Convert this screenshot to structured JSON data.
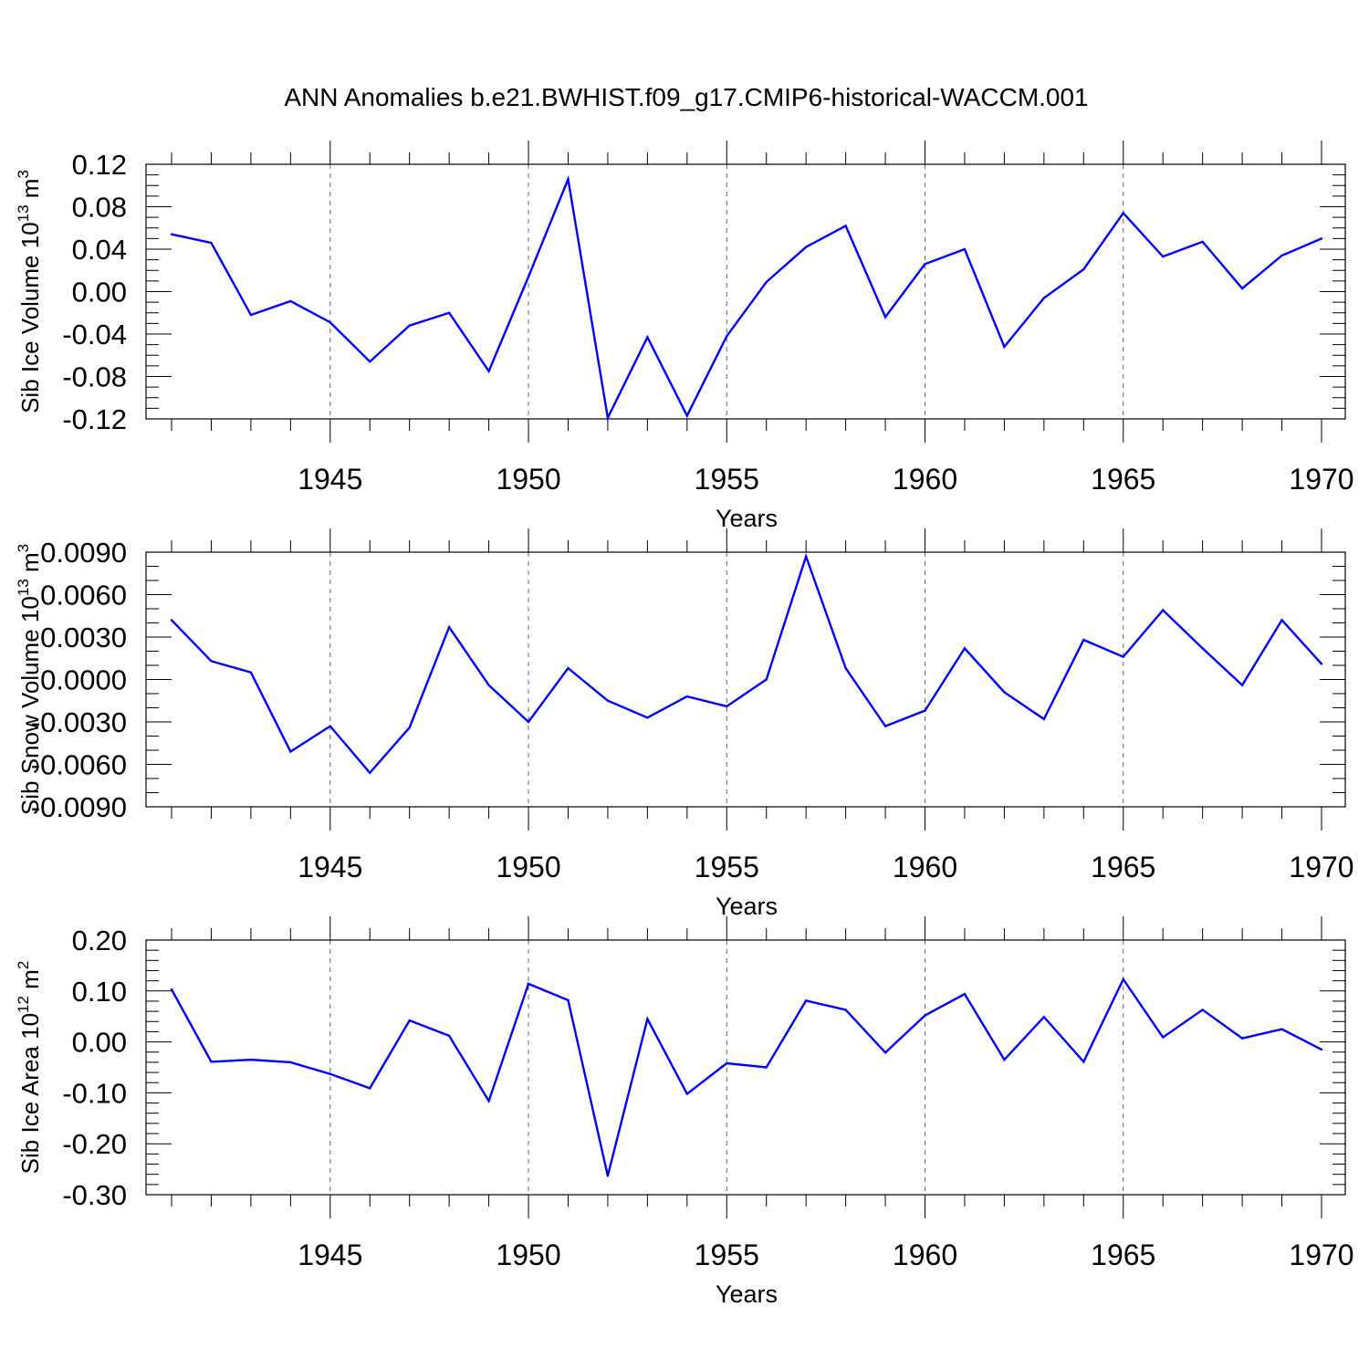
{
  "title": "ANN Anomalies b.e21.BWHIST.f09_g17.CMIP6-historical-WACCM.001",
  "line_color": "#0000ff",
  "chart_data": [
    {
      "type": "line",
      "ylabel_main": "Sib Ice Volume 10",
      "ylabel_exp": "13",
      "ylabel_unit": " m",
      "ylabel_unit_exp": "3",
      "xlabel": "Years",
      "xlim": [
        1941,
        1970
      ],
      "ylim": [
        -0.12,
        0.12
      ],
      "yticks": [
        0.12,
        0.08,
        0.04,
        0.0,
        -0.04,
        -0.08,
        -0.12
      ],
      "ytick_labels": [
        "0.12",
        "0.08",
        "0.04",
        "0.00",
        "-0.04",
        "-0.08",
        "-0.12"
      ],
      "ytick_minor_step": 0.01,
      "xticks": [
        1945,
        1950,
        1955,
        1960,
        1965,
        1970
      ],
      "xtick_labels": [
        "1945",
        "1950",
        "1955",
        "1960",
        "1965",
        "1970"
      ],
      "grid_x": true,
      "x": [
        1941,
        1942,
        1943,
        1944,
        1945,
        1946,
        1947,
        1948,
        1949,
        1950,
        1951,
        1952,
        1953,
        1954,
        1955,
        1956,
        1957,
        1958,
        1959,
        1960,
        1961,
        1962,
        1963,
        1964,
        1965,
        1966,
        1967,
        1968,
        1969,
        1970
      ],
      "y": [
        0.054,
        0.046,
        -0.022,
        -0.009,
        -0.029,
        -0.066,
        -0.032,
        -0.02,
        -0.075,
        0.014,
        0.106,
        -0.119,
        -0.043,
        -0.117,
        -0.042,
        0.009,
        0.042,
        0.062,
        -0.024,
        0.026,
        0.04,
        -0.052,
        -0.006,
        0.021,
        0.074,
        0.033,
        0.047,
        0.003,
        0.034,
        0.05
      ]
    },
    {
      "type": "line",
      "ylabel_main": "Sib Snow Volume 10",
      "ylabel_exp": "13",
      "ylabel_unit": " m",
      "ylabel_unit_exp": "3",
      "xlabel": "Years",
      "xlim": [
        1941,
        1970
      ],
      "ylim": [
        -0.009,
        0.009
      ],
      "yticks": [
        0.009,
        0.006,
        0.003,
        0.0,
        -0.003,
        -0.006,
        -0.009
      ],
      "ytick_labels": [
        "0.0090",
        "0.0060",
        "0.0030",
        "0.0000",
        "-0.0030",
        "-0.0060",
        "-0.0090"
      ],
      "ytick_minor_step": 0.001,
      "xticks": [
        1945,
        1950,
        1955,
        1960,
        1965,
        1970
      ],
      "xtick_labels": [
        "1945",
        "1950",
        "1955",
        "1960",
        "1965",
        "1970"
      ],
      "grid_x": true,
      "x": [
        1941,
        1942,
        1943,
        1944,
        1945,
        1946,
        1947,
        1948,
        1949,
        1950,
        1951,
        1952,
        1953,
        1954,
        1955,
        1956,
        1957,
        1958,
        1959,
        1960,
        1961,
        1962,
        1963,
        1964,
        1965,
        1966,
        1967,
        1968,
        1969,
        1970
      ],
      "y": [
        0.0042,
        0.0013,
        0.0005,
        -0.0051,
        -0.0033,
        -0.0066,
        -0.0034,
        0.0037,
        -0.0004,
        -0.003,
        0.0008,
        -0.0015,
        -0.0027,
        -0.0012,
        -0.0019,
        0.0,
        0.0087,
        0.0008,
        -0.0033,
        -0.0022,
        0.0022,
        -0.0009,
        -0.0028,
        0.0028,
        0.0016,
        0.0049,
        0.0022,
        -0.0004,
        0.0042,
        0.0011
      ]
    },
    {
      "type": "line",
      "ylabel_main": "Sib Ice Area 10",
      "ylabel_exp": "12",
      "ylabel_unit": " m",
      "ylabel_unit_exp": "2",
      "xlabel": "Years",
      "xlim": [
        1941,
        1970
      ],
      "ylim": [
        -0.3,
        0.2
      ],
      "yticks": [
        0.2,
        0.1,
        0.0,
        -0.1,
        -0.2,
        -0.3
      ],
      "ytick_labels": [
        "0.20",
        "0.10",
        "0.00",
        "-0.10",
        "-0.20",
        "-0.30"
      ],
      "ytick_minor_step": 0.02,
      "xticks": [
        1945,
        1950,
        1955,
        1960,
        1965,
        1970
      ],
      "xtick_labels": [
        "1945",
        "1950",
        "1955",
        "1960",
        "1965",
        "1970"
      ],
      "grid_x": true,
      "x": [
        1941,
        1942,
        1943,
        1944,
        1945,
        1946,
        1947,
        1948,
        1949,
        1950,
        1951,
        1952,
        1953,
        1954,
        1955,
        1956,
        1957,
        1958,
        1959,
        1960,
        1961,
        1962,
        1963,
        1964,
        1965,
        1966,
        1967,
        1968,
        1969,
        1970
      ],
      "y": [
        0.103,
        -0.039,
        -0.035,
        -0.04,
        -0.063,
        -0.091,
        0.042,
        0.012,
        -0.116,
        0.114,
        0.082,
        -0.263,
        0.045,
        -0.102,
        -0.042,
        -0.05,
        0.081,
        0.063,
        -0.021,
        0.052,
        0.094,
        -0.035,
        0.049,
        -0.039,
        0.123,
        0.009,
        0.063,
        0.007,
        0.025,
        -0.015
      ]
    }
  ]
}
